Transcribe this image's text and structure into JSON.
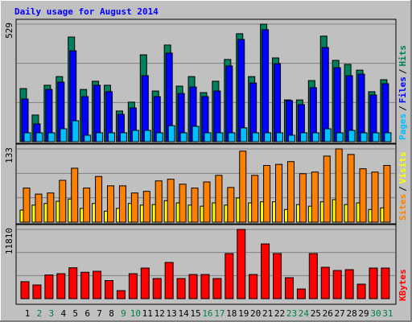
{
  "title": "Daily usage for August 2014",
  "legend_separator": "/",
  "categories": [
    "1",
    "2",
    "3",
    "4",
    "5",
    "6",
    "7",
    "8",
    "9",
    "10",
    "11",
    "12",
    "13",
    "14",
    "15",
    "16",
    "17",
    "18",
    "19",
    "20",
    "21",
    "22",
    "23",
    "24",
    "25",
    "26",
    "27",
    "28",
    "29",
    "30",
    "31"
  ],
  "category_colors": [
    "#000000",
    "#008040",
    "#008040",
    "#000000",
    "#000000",
    "#000000",
    "#000000",
    "#000000",
    "#008040",
    "#008040",
    "#000000",
    "#000000",
    "#000000",
    "#000000",
    "#000000",
    "#008040",
    "#008040",
    "#000000",
    "#000000",
    "#000000",
    "#000000",
    "#000000",
    "#008040",
    "#008040",
    "#000000",
    "#000000",
    "#000000",
    "#000000",
    "#000000",
    "#008040",
    "#008040"
  ],
  "chart_data": [
    {
      "type": "bar",
      "ylim": [
        0,
        529
      ],
      "yticks": [
        529
      ],
      "series": [
        {
          "name": "Hits",
          "color": "#00805c",
          "values": [
            239,
            120,
            254,
            293,
            471,
            235,
            272,
            254,
            138,
            178,
            391,
            228,
            435,
            250,
            293,
            221,
            272,
            370,
            486,
            293,
            529,
            377,
            188,
            188,
            275,
            475,
            366,
            348,
            322,
            225,
            279
          ]
        },
        {
          "name": "Files",
          "color": "#0000ff",
          "values": [
            192,
            80,
            235,
            268,
            409,
            203,
            254,
            225,
            123,
            152,
            297,
            203,
            399,
            217,
            246,
            203,
            228,
            341,
            460,
            264,
            504,
            351,
            185,
            167,
            243,
            424,
            333,
            297,
            304,
            210,
            261
          ]
        },
        {
          "name": "Pages",
          "color": "#00c0ff",
          "values": [
            40,
            40,
            40,
            58,
            94,
            29,
            40,
            40,
            40,
            51,
            51,
            40,
            72,
            40,
            69,
            40,
            40,
            40,
            62,
            40,
            40,
            40,
            29,
            40,
            40,
            58,
            40,
            51,
            40,
            40,
            40
          ]
        }
      ]
    },
    {
      "type": "bar",
      "ylim": [
        0,
        133
      ],
      "yticks": [
        133
      ],
      "series": [
        {
          "name": "Visits",
          "color": "#ffff00",
          "values": [
            22,
            31,
            34,
            38,
            42,
            25,
            34,
            20,
            25,
            34,
            31,
            32,
            39,
            35,
            31,
            29,
            35,
            31,
            44,
            35,
            37,
            37,
            23,
            32,
            29,
            37,
            41,
            32,
            35,
            23,
            26
          ]
        },
        {
          "name": "Sites",
          "color": "#ff8000",
          "values": [
            62,
            51,
            53,
            76,
            98,
            62,
            83,
            66,
            66,
            53,
            56,
            75,
            78,
            69,
            62,
            73,
            85,
            63,
            129,
            85,
            103,
            105,
            110,
            88,
            91,
            120,
            133,
            123,
            97,
            91,
            103
          ]
        }
      ]
    },
    {
      "type": "bar",
      "ylim": [
        0,
        11810
      ],
      "yticks": [
        11810
      ],
      "series": [
        {
          "name": "KBytes",
          "color": "#ff0000",
          "values": [
            2896,
            2335,
            4052,
            4257,
            5264,
            4500,
            4670,
            3090,
            1370,
            4257,
            5218,
            3433,
            6180,
            3433,
            4120,
            4120,
            3433,
            7690,
            11810,
            4120,
            9338,
            7690,
            3570,
            1648,
            7690,
            5356,
            4806,
            4944,
            2472,
            5218,
            5218
          ]
        }
      ]
    }
  ]
}
